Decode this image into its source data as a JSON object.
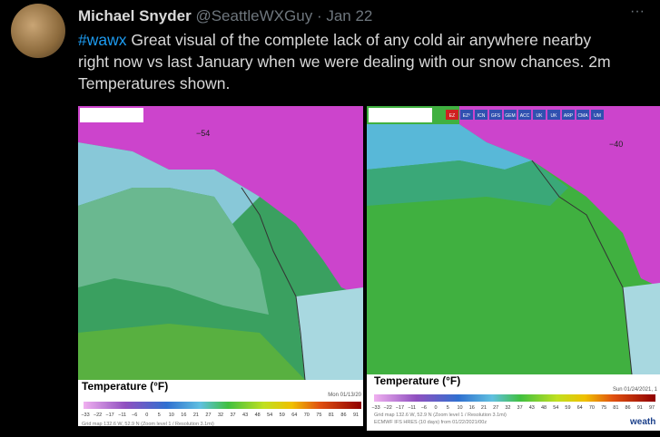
{
  "tweet": {
    "author": "Michael Snyder",
    "handle": "@SeattleWXGuy",
    "separator": "·",
    "date": "Jan 22",
    "hashtag": "#wawx",
    "text_lines": [
      "Great visual of the complete lack of any cold air anywhere nearby",
      "right now vs last January when we were dealing with our snow chances. 2m",
      "Temperatures shown."
    ]
  },
  "images": [
    {
      "legend_title": "Temperature (°F)",
      "timestamp": "Mon 01/13/20",
      "scale": [
        "−33",
        "−22",
        "−17",
        "−11",
        "−6",
        "0",
        "5",
        "10",
        "16",
        "21",
        "27",
        "32",
        "37",
        "43",
        "48",
        "54",
        "59",
        "64",
        "70",
        "75",
        "81",
        "86",
        "91"
      ],
      "map_label": "−54",
      "footer": "Grid map 132.6 W, 52.9 N (Zoom level 1 / Resolution 3.1mi)"
    },
    {
      "legend_title": "Temperature (°F)",
      "timestamp": "Sun 01/24/2021, 1",
      "scale": [
        "−33",
        "−22",
        "−17",
        "−11",
        "−6",
        "0",
        "5",
        "10",
        "16",
        "21",
        "27",
        "32",
        "37",
        "43",
        "48",
        "54",
        "59",
        "64",
        "70",
        "75",
        "81",
        "86",
        "91",
        "97"
      ],
      "map_label": "−40",
      "footer": "Grid map 132.6 W, 52.9 N (Zoom level 1 / Resolution 3.1mi)",
      "model_line": "ECMWF IFS HRES (10 days) from 01/22/2021/00z",
      "model_tabs": [
        "EZ",
        "EZ⁰",
        "ICN",
        "GFS",
        "GEM",
        "ACC",
        "UK",
        "UK",
        "ARP",
        "CMA",
        "UM"
      ],
      "brand": "weath"
    }
  ]
}
